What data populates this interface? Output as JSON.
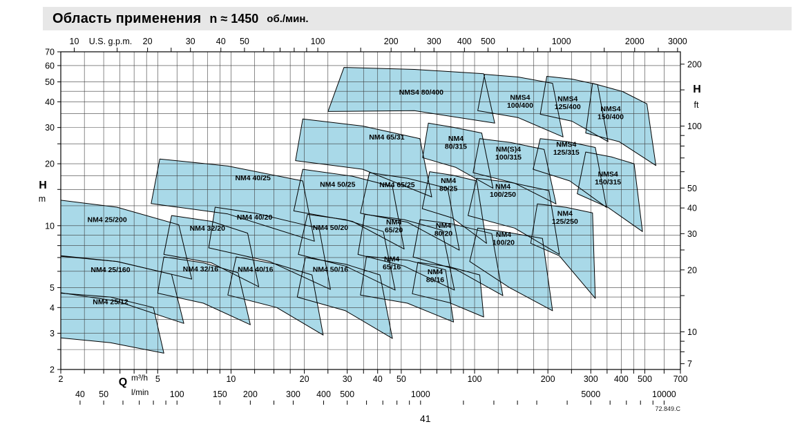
{
  "page": {
    "title": {
      "main": "Область применения",
      "speed": "n ≈ 1450",
      "unit": "об./мин."
    },
    "footer_ref": "72.849.C",
    "page_number": "41"
  },
  "chart_data": {
    "type": "area",
    "title": "Область применения n ≈ 1450 об./мин.",
    "x_axis": {
      "label": "Q",
      "units_primary": "m³/h",
      "units_secondary": "l/min",
      "scale": "log",
      "range_m3h": [
        2,
        700
      ],
      "ticks_m3h": [
        2,
        5,
        10,
        20,
        30,
        40,
        50,
        100,
        200,
        300,
        400,
        500,
        700
      ],
      "ticks_lmin": [
        40,
        50,
        100,
        150,
        200,
        300,
        400,
        500,
        1000,
        5000,
        10000
      ],
      "top_axis_label": "U.S. g.p.m.",
      "ticks_usgpm": [
        10,
        20,
        30,
        40,
        50,
        100,
        200,
        300,
        400,
        500,
        1000,
        2000,
        3000
      ]
    },
    "y_axis": {
      "label_left": "H",
      "unit_left": "m",
      "label_right": "H",
      "unit_right": "ft",
      "scale": "log",
      "range_m": [
        2,
        70
      ],
      "ticks_m": [
        70,
        60,
        50,
        40,
        30,
        20,
        10,
        5,
        4,
        3,
        2
      ],
      "ticks_ft": [
        200,
        100,
        50,
        40,
        30,
        20,
        10,
        7
      ]
    },
    "colors": {
      "region_fill": "#a9d9e8",
      "region_stroke": "#000000",
      "grid": "#3c3c3c",
      "titlebar_bg": "#e7e7e7"
    },
    "pumps": [
      {
        "name": "NM4 25/12",
        "lines": [
          "NM4 25/12"
        ],
        "label_at": [
          3.2,
          4.26
        ],
        "poly": [
          [
            2,
            4.7
          ],
          [
            3.2,
            4.5
          ],
          [
            4.8,
            4.0
          ],
          [
            5.3,
            2.4
          ],
          [
            3.2,
            2.7
          ],
          [
            2,
            2.85
          ]
        ]
      },
      {
        "name": "NM4 25/160",
        "lines": [
          "NM4 25/160"
        ],
        "label_at": [
          3.2,
          6.1
        ],
        "poly": [
          [
            2,
            7.1
          ],
          [
            3.4,
            6.7
          ],
          [
            5.7,
            5.8
          ],
          [
            6.4,
            3.35
          ],
          [
            3.4,
            4.3
          ],
          [
            2,
            4.72
          ]
        ]
      },
      {
        "name": "NM4 25/200",
        "lines": [
          "NM4 25/200"
        ],
        "label_at": [
          3.1,
          10.7
        ],
        "poly": [
          [
            2,
            13.3
          ],
          [
            3.4,
            12.3
          ],
          [
            6.1,
            10.1
          ],
          [
            6.9,
            5.5
          ],
          [
            3.4,
            6.7
          ],
          [
            2,
            7.15
          ]
        ]
      },
      {
        "name": "NM4 32/16",
        "lines": [
          "NM4 32/16"
        ],
        "label_at": [
          7.5,
          6.15
        ],
        "poly": [
          [
            5.3,
            7.05
          ],
          [
            7.7,
            6.6
          ],
          [
            10.7,
            5.9
          ],
          [
            12,
            3.3
          ],
          [
            7.7,
            4.2
          ],
          [
            5,
            4.7
          ]
        ]
      },
      {
        "name": "NM4 32/20",
        "lines": [
          "NM4 32/20"
        ],
        "label_at": [
          8,
          9.7
        ],
        "poly": [
          [
            5.7,
            11.2
          ],
          [
            8.3,
            10.5
          ],
          [
            11.7,
            9.2
          ],
          [
            13,
            5.05
          ],
          [
            8.3,
            6.6
          ],
          [
            5.3,
            7.25
          ]
        ]
      },
      {
        "name": "NM4 40/16",
        "lines": [
          "NM4 40/16"
        ],
        "label_at": [
          12.6,
          6.13
        ],
        "poly": [
          [
            10.5,
            7.05
          ],
          [
            15.4,
            6.5
          ],
          [
            21.5,
            5.76
          ],
          [
            23.9,
            2.94
          ],
          [
            15.4,
            4.0
          ],
          [
            9.7,
            4.6
          ]
        ]
      },
      {
        "name": "NM4 40/20",
        "lines": [
          "NM4 40/20"
        ],
        "label_at": [
          12.5,
          11.0
        ],
        "poly": [
          [
            8.6,
            12.3
          ],
          [
            12.6,
            11.5
          ],
          [
            23,
            9.7
          ],
          [
            25.6,
            4.9
          ],
          [
            14.4,
            6.7
          ],
          [
            8.1,
            7.8
          ]
        ]
      },
      {
        "name": "NM4 40/25",
        "lines": [
          "NM4 40/25"
        ],
        "label_at": [
          12.3,
          17.1
        ],
        "poly": [
          [
            5.1,
            21.1
          ],
          [
            9.7,
            19.5
          ],
          [
            19.7,
            16.5
          ],
          [
            22,
            8.4
          ],
          [
            9.7,
            11.4
          ],
          [
            4.7,
            12.8
          ]
        ]
      },
      {
        "name": "NM4 50/16",
        "lines": [
          "NM4 50/16"
        ],
        "label_at": [
          25.6,
          6.13
        ],
        "poly": [
          [
            20.2,
            7.0
          ],
          [
            29.5,
            6.5
          ],
          [
            40.9,
            5.76
          ],
          [
            46,
            2.83
          ],
          [
            29.5,
            3.86
          ],
          [
            18.7,
            4.5
          ]
        ]
      },
      {
        "name": "NM4 50/20",
        "lines": [
          "NM4 50/20"
        ],
        "label_at": [
          25.6,
          9.8
        ],
        "poly": [
          [
            20.6,
            11.35
          ],
          [
            29.5,
            10.7
          ],
          [
            42.2,
            9.36
          ],
          [
            47.2,
            4.86
          ],
          [
            29.5,
            6.36
          ],
          [
            18.9,
            7.25
          ]
        ]
      },
      {
        "name": "NM4 50/25",
        "lines": [
          "NM4 50/25"
        ],
        "label_at": [
          27.4,
          15.9
        ],
        "poly": [
          [
            19.7,
            18.8
          ],
          [
            31.5,
            17.4
          ],
          [
            46,
            15.5
          ],
          [
            51.4,
            7.7
          ],
          [
            31.5,
            10.5
          ],
          [
            18.1,
            11.8
          ]
        ]
      },
      {
        "name": "NM4 65/31",
        "lines": [
          "NM4 65/31"
        ],
        "label_at": [
          43.6,
          27
        ],
        "poly": [
          [
            19.7,
            33
          ],
          [
            34.7,
            30.5
          ],
          [
            59.6,
            26.5
          ],
          [
            66.7,
            13.8
          ],
          [
            34.7,
            18.8
          ],
          [
            18.4,
            20.7
          ]
        ]
      },
      {
        "name": "NM4 65/25",
        "lines": [
          "NM4 65/25"
        ],
        "label_at": [
          48.1,
          15.8
        ],
        "poly": [
          [
            37,
            18.1
          ],
          [
            53,
            17
          ],
          [
            77.5,
            15.2
          ],
          [
            86.6,
            7.6
          ],
          [
            53,
            10.4
          ],
          [
            34,
            11.5
          ]
        ]
      },
      {
        "name": "NM4 65/20",
        "lines": [
          "NM4",
          "65/20"
        ],
        "label_at": [
          46.6,
          10.0
        ],
        "poly": [
          [
            35.4,
            11.35
          ],
          [
            51.4,
            10.7
          ],
          [
            73.6,
            9.5
          ],
          [
            82.7,
            4.86
          ],
          [
            51.4,
            6.36
          ],
          [
            33.2,
            7.25
          ]
        ]
      },
      {
        "name": "NM4 65/16",
        "lines": [
          "NM4",
          "65/16"
        ],
        "label_at": [
          45.7,
          6.6
        ],
        "poly": [
          [
            36,
            7.1
          ],
          [
            53,
            6.8
          ],
          [
            76,
            6.1
          ],
          [
            82,
            3.4
          ],
          [
            53,
            4.2
          ],
          [
            34,
            4.6
          ]
        ]
      },
      {
        "name": "NMS4 80/400",
        "lines": [
          "NMS4 80/400"
        ],
        "label_at": [
          60.4,
          44.5
        ],
        "poly": [
          [
            29.1,
            58.8
          ],
          [
            56.6,
            57.5
          ],
          [
            109,
            54.8
          ],
          [
            121,
            31.5
          ],
          [
            56.6,
            36.2
          ],
          [
            25,
            35.9
          ]
        ]
      },
      {
        "name": "NM4 80/315",
        "lines": [
          "NM4",
          "80/315"
        ],
        "label_at": [
          83.8,
          25.4
        ],
        "poly": [
          [
            64.6,
            31.5
          ],
          [
            82.7,
            30
          ],
          [
            107,
            28.2
          ],
          [
            119,
            15.2
          ],
          [
            83.8,
            19.2
          ],
          [
            61.2,
            21.4
          ]
        ]
      },
      {
        "name": "NM4 80/25",
        "lines": [
          "NM4",
          "80/25"
        ],
        "label_at": [
          78.1,
          15.9
        ],
        "poly": [
          [
            65.4,
            18.3
          ],
          [
            81,
            17.6
          ],
          [
            102,
            16.5
          ],
          [
            112,
            8.2
          ],
          [
            81,
            10.9
          ],
          [
            61,
            12.1
          ]
        ]
      },
      {
        "name": "NM4 80/20",
        "lines": [
          "NM4",
          "80/20"
        ],
        "label_at": [
          74.5,
          9.6
        ],
        "poly": [
          [
            59.7,
            10.7
          ],
          [
            81,
            10.2
          ],
          [
            117.6,
            9.15
          ],
          [
            130.7,
            4.57
          ],
          [
            83.8,
            6.13
          ],
          [
            55.9,
            7.05
          ]
        ]
      },
      {
        "name": "NM4 80/16",
        "lines": [
          "NM4",
          "80/16"
        ],
        "label_at": [
          68.9,
          5.73
        ],
        "poly": [
          [
            58.5,
            6.63
          ],
          [
            78.5,
            6.32
          ],
          [
            105,
            5.76
          ],
          [
            109,
            3.6
          ],
          [
            78.5,
            4.23
          ],
          [
            55.5,
            4.67
          ]
        ]
      },
      {
        "name": "NM(S)4 100/315",
        "lines": [
          "NM(S)4",
          "100/315"
        ],
        "label_at": [
          137.7,
          22.6
        ],
        "poly": [
          [
            105,
            26.5
          ],
          [
            141,
            25.35
          ],
          [
            193,
            23.46
          ],
          [
            216,
            12.75
          ],
          [
            146,
            16.1
          ],
          [
            98.6,
            18.1
          ]
        ]
      },
      {
        "name": "NMS4 100/400",
        "lines": [
          "NMS4",
          "100/400"
        ],
        "label_at": [
          153.8,
          40.3
        ],
        "poly": [
          [
            110,
            54.4
          ],
          [
            151,
            52.8
          ],
          [
            209,
            49.2
          ],
          [
            231,
            27
          ],
          [
            151,
            33.5
          ],
          [
            103,
            36.2
          ]
        ]
      },
      {
        "name": "NM4 100/250",
        "lines": [
          "NM4",
          "100/250"
        ],
        "label_at": [
          130.7,
          14.85
        ],
        "poly": [
          [
            102,
            17
          ],
          [
            141,
            16.2
          ],
          [
            202,
            14.8
          ],
          [
            223,
            7.25
          ],
          [
            146,
            9.73
          ],
          [
            94,
            11.2
          ]
        ]
      },
      {
        "name": "NM4 100/20",
        "lines": [
          "NM4",
          "100/20"
        ],
        "label_at": [
          131.5,
          8.67
        ],
        "poly": [
          [
            103,
            9.73
          ],
          [
            139,
            9.25
          ],
          [
            190,
            8.67
          ],
          [
            209,
            3.86
          ],
          [
            139,
            5.0
          ],
          [
            95.5,
            6.7
          ]
        ]
      },
      {
        "name": "NM4 125/250",
        "lines": [
          "NM4",
          "125/250"
        ],
        "label_at": [
          235,
          11.0
        ],
        "poly": [
          [
            181,
            12.75
          ],
          [
            238,
            12.27
          ],
          [
            305,
            11.53
          ],
          [
            313,
            4.43
          ],
          [
            223,
            7.14
          ],
          [
            170,
            8.21
          ]
        ]
      },
      {
        "name": "NMS4 125/315",
        "lines": [
          "NMS4",
          "125/315"
        ],
        "label_at": [
          238,
          23.8
        ],
        "poly": [
          [
            186,
            26.5
          ],
          [
            241,
            25.6
          ],
          [
            313,
            24
          ],
          [
            348,
            12.27
          ],
          [
            246,
            16.5
          ],
          [
            174,
            18.8
          ]
        ]
      },
      {
        "name": "NMS4 125/400",
        "lines": [
          "NMS4",
          "125/400"
        ],
        "label_at": [
          241,
          39.7
        ],
        "poly": [
          [
            198,
            53.2
          ],
          [
            251,
            51.6
          ],
          [
            320,
            48.5
          ],
          [
            353,
            25.6
          ],
          [
            251,
            32.2
          ],
          [
            186,
            34.8
          ]
        ]
      },
      {
        "name": "NMS4 150/315",
        "lines": [
          "NMS4",
          "150/315"
        ],
        "label_at": [
          353,
          17.1
        ],
        "poly": [
          [
            286,
            22.8
          ],
          [
            364,
            21.6
          ],
          [
            452,
            20
          ],
          [
            489,
            9.36
          ],
          [
            353,
            12.27
          ],
          [
            264,
            14.3
          ]
        ]
      },
      {
        "name": "NMS4 150/400",
        "lines": [
          "NMS4",
          "150/400"
        ],
        "label_at": [
          362,
          35.4
        ],
        "poly": [
          [
            305,
            49.2
          ],
          [
            405,
            44.9
          ],
          [
            510,
            39.1
          ],
          [
            555,
            19.6
          ],
          [
            392,
            25.6
          ],
          [
            286,
            28.2
          ]
        ]
      }
    ]
  }
}
